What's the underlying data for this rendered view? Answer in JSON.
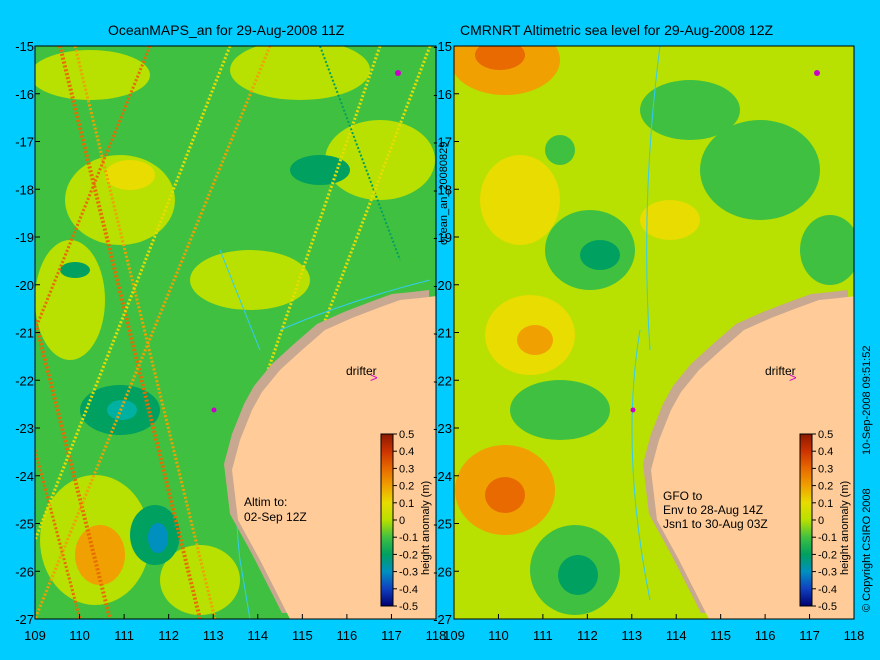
{
  "panels": [
    {
      "title": "OceanMAPS_an for 29-Aug-2008 11Z",
      "annotation": [
        "Altim to:",
        "02-Sep 12Z"
      ],
      "drifter_label": "drifter"
    },
    {
      "title": "CMRNRT Altimetric sea level  for 29-Aug-2008 12Z",
      "annotation": [
        "GFO to",
        "Env to 28-Aug 14Z",
        "Jsn1 to 30-Aug 03Z"
      ],
      "drifter_label": "drifter"
    }
  ],
  "axes": {
    "x_ticks": [
      "109",
      "110",
      "111",
      "112",
      "113",
      "114",
      "115",
      "116",
      "117",
      "118"
    ],
    "y_ticks": [
      "-15",
      "-16",
      "-17",
      "-18",
      "-19",
      "-20",
      "-21",
      "-22",
      "-23",
      "-24",
      "-25",
      "-26",
      "-27"
    ]
  },
  "colorbar": {
    "label": "height anomaly (m)",
    "ticks": [
      "0.5",
      "0.4",
      "0.3",
      "0.2",
      "0.1",
      "0",
      "-0.1",
      "-0.2",
      "-0.3",
      "-0.4",
      "-0.5"
    ],
    "colors": [
      "#8b1a00",
      "#cc3300",
      "#e86a00",
      "#f0a000",
      "#e8dc00",
      "#b8e000",
      "#40c040",
      "#00a060",
      "#0090c0",
      "#1040c0",
      "#000070"
    ]
  },
  "side_text": {
    "file_id": "ocean_an_20080829",
    "timestamp": "10-Sep-2008 09:51:52",
    "copyright": "© Copyright CSIRO 2008"
  },
  "colors": {
    "background": "#00ccff",
    "land": "#ffcc99",
    "shelf": "#c8a890",
    "coast_contour": "#33ccee"
  }
}
